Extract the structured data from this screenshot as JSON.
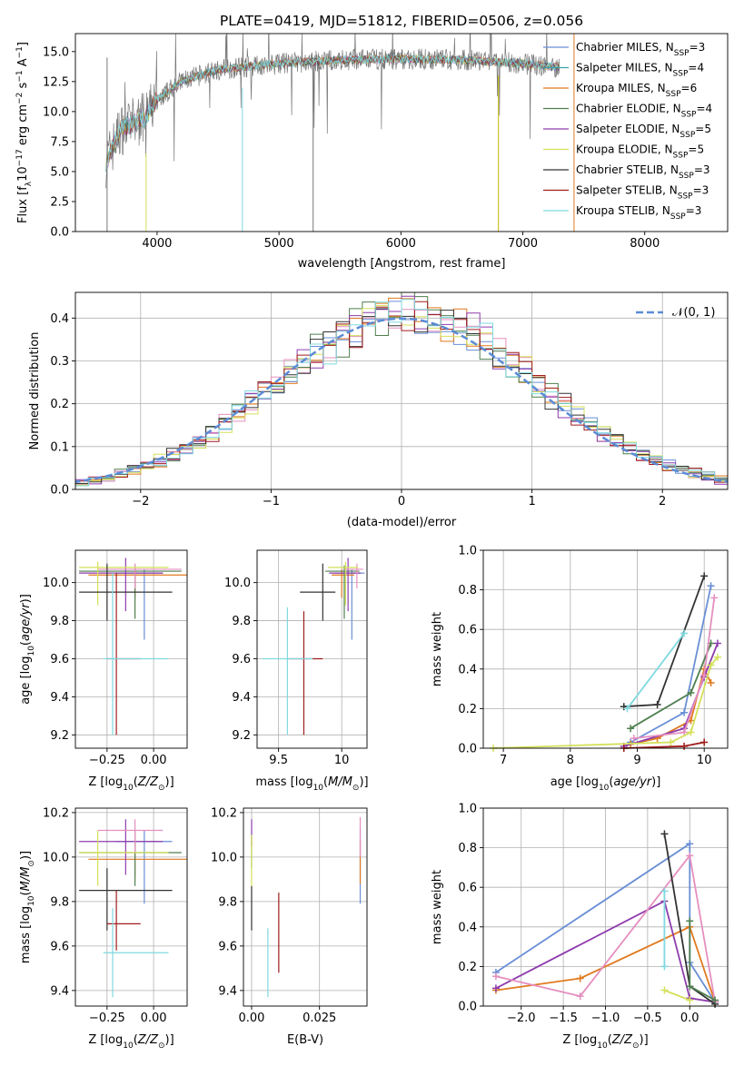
{
  "figure_title": "PLATE=0419, MJD=51812, FIBERID=0506, z=0.056",
  "chart_data": [
    {
      "id": "spectrum",
      "type": "line",
      "title": "PLATE=0419, MJD=51812, FIBERID=0506, z=0.056",
      "xlabel": "wavelength [Angstrom, rest frame]",
      "ylabel": "Flux [f_λ 10^-17 erg cm^-2 s^-1 A^-1]",
      "xlim": [
        3330,
        8680
      ],
      "ylim": [
        0,
        16.5
      ],
      "xticks": [
        4000,
        5000,
        6000,
        7000,
        8000
      ],
      "yticks": [
        0.0,
        2.5,
        5.0,
        7.5,
        10.0,
        12.5,
        15.0
      ],
      "grid": false,
      "legend_position": "upper-right",
      "continuum": [
        [
          3580,
          5.8
        ],
        [
          3700,
          8.5
        ],
        [
          3900,
          9.5
        ],
        [
          4000,
          11.0
        ],
        [
          4200,
          12.5
        ],
        [
          4500,
          13.5
        ],
        [
          5000,
          14.0
        ],
        [
          5500,
          14.3
        ],
        [
          6000,
          14.4
        ],
        [
          6500,
          14.3
        ],
        [
          7000,
          14.0
        ],
        [
          7300,
          13.7
        ]
      ],
      "series": [
        {
          "name": "Chabrier MILES, N_SSP=3",
          "color": "#6a8fd6"
        },
        {
          "name": "Salpeter MILES, N_SSP=4",
          "color": "#3aa0a8"
        },
        {
          "name": "Kroupa MILES, N_SSP=6",
          "color": "#e07a1f"
        },
        {
          "name": "Chabrier ELODIE, N_SSP=4",
          "color": "#4f7f4f"
        },
        {
          "name": "Salpeter ELODIE, N_SSP=5",
          "color": "#8e3cad"
        },
        {
          "name": "Kroupa ELODIE, N_SSP=5",
          "color": "#d4e05a"
        },
        {
          "name": "Chabrier STELIB, N_SSP=3",
          "color": "#333333"
        },
        {
          "name": "Salpeter STELIB, N_SSP=3",
          "color": "#a01c1c"
        },
        {
          "name": "Kroupa STELIB, N_SSP=3",
          "color": "#7fd9e0"
        }
      ]
    },
    {
      "id": "residuals",
      "type": "histogram",
      "xlabel": "(data-model)/error",
      "ylabel": "Normed distribution",
      "xlim": [
        -2.5,
        2.5
      ],
      "ylim": [
        0,
        0.46
      ],
      "xticks": [
        -2,
        -1,
        0,
        1,
        2
      ],
      "yticks": [
        0.0,
        0.1,
        0.2,
        0.3,
        0.4
      ],
      "grid": true,
      "legend": "𝒩(0, 1)",
      "legend_position": "upper-right",
      "gaussian": {
        "mean": 0,
        "sigma": 1,
        "color": "#5b8bd6"
      },
      "bin_width": 0.1,
      "colors": [
        "#6a8fd6",
        "#e07a1f",
        "#4f7f4f",
        "#8e3cad",
        "#e58fc0",
        "#d4e05a",
        "#333333",
        "#a01c1c",
        "#7fd9e0"
      ]
    },
    {
      "id": "age_vs_Z",
      "type": "errorbar",
      "xlabel": "Z [log10(Z/Z⊙)]",
      "ylabel": "age [log10(age/yr)]",
      "xlim": [
        -0.42,
        0.18
      ],
      "ylim": [
        9.13,
        10.17
      ],
      "xticks": [
        -0.25,
        0.0
      ],
      "xticklabels": [
        "−0.25",
        "0.00"
      ],
      "yticks": [
        9.2,
        9.4,
        9.6,
        9.8,
        10.0
      ],
      "grid": true,
      "points": [
        {
          "x": -0.05,
          "xerr": [
            0.15,
            0.1
          ],
          "y": 10.05,
          "yerr": [
            0.35,
            0.02
          ],
          "color": "#6a8fd6"
        },
        {
          "x": -0.1,
          "xerr": [
            0.25,
            0.28
          ],
          "y": 10.04,
          "yerr": [
            0.12,
            0.03
          ],
          "color": "#e07a1f"
        },
        {
          "x": -0.1,
          "xerr": [
            0.3,
            0.25
          ],
          "y": 10.06,
          "yerr": [
            0.25,
            0.03
          ],
          "color": "#4f7f4f"
        },
        {
          "x": -0.15,
          "xerr": [
            0.25,
            0.2
          ],
          "y": 10.05,
          "yerr": [
            0.2,
            0.08
          ],
          "color": "#8e3cad"
        },
        {
          "x": -0.1,
          "xerr": [
            0.2,
            0.25
          ],
          "y": 10.07,
          "yerr": [
            0.1,
            0.03
          ],
          "color": "#e58fc0"
        },
        {
          "x": -0.3,
          "xerr": [
            0.1,
            0.38
          ],
          "y": 10.08,
          "yerr": [
            0.2,
            0.03
          ],
          "color": "#d4e05a"
        },
        {
          "x": -0.25,
          "xerr": [
            0.15,
            0.35
          ],
          "y": 9.95,
          "yerr": [
            0.15,
            0.15
          ],
          "color": "#333333"
        },
        {
          "x": -0.2,
          "xerr": [
            0.05,
            0.13
          ],
          "y": 9.6,
          "yerr": [
            0.4,
            0.45
          ],
          "color": "#a01c1c"
        },
        {
          "x": -0.22,
          "xerr": [
            0.05,
            0.3
          ],
          "y": 9.6,
          "yerr": [
            0.4,
            0.45
          ],
          "color": "#7fd9e0"
        }
      ]
    },
    {
      "id": "age_vs_mass",
      "type": "errorbar",
      "xlabel": "mass [log10(M/M⊙)]",
      "ylabel": "",
      "xlim": [
        9.33,
        10.2
      ],
      "ylim": [
        9.13,
        10.17
      ],
      "xticks": [
        9.5,
        10.0
      ],
      "yticks": [
        9.2,
        9.4,
        9.6,
        9.8,
        10.0
      ],
      "grid": true,
      "points": [
        {
          "x": 10.08,
          "xerr": [
            0.14,
            0.1
          ],
          "y": 10.05,
          "yerr": [
            0.35,
            0.02
          ],
          "color": "#6a8fd6"
        },
        {
          "x": 10.0,
          "xerr": [
            0.08,
            0.1
          ],
          "y": 10.04,
          "yerr": [
            0.12,
            0.03
          ],
          "color": "#e07a1f"
        },
        {
          "x": 10.02,
          "xerr": [
            0.15,
            0.12
          ],
          "y": 10.06,
          "yerr": [
            0.25,
            0.03
          ],
          "color": "#4f7f4f"
        },
        {
          "x": 10.05,
          "xerr": [
            0.15,
            0.1
          ],
          "y": 10.05,
          "yerr": [
            0.2,
            0.08
          ],
          "color": "#8e3cad"
        },
        {
          "x": 10.12,
          "xerr": [
            0.1,
            0.05
          ],
          "y": 10.07,
          "yerr": [
            0.1,
            0.03
          ],
          "color": "#e58fc0"
        },
        {
          "x": 10.03,
          "xerr": [
            0.14,
            0.1
          ],
          "y": 10.08,
          "yerr": [
            0.2,
            0.03
          ],
          "color": "#d4e05a"
        },
        {
          "x": 9.85,
          "xerr": [
            0.18,
            0.1
          ],
          "y": 9.95,
          "yerr": [
            0.15,
            0.15
          ],
          "color": "#333333"
        },
        {
          "x": 9.7,
          "xerr": [
            0.12,
            0.15
          ],
          "y": 9.6,
          "yerr": [
            0.4,
            0.25
          ],
          "color": "#a01c1c"
        },
        {
          "x": 9.57,
          "xerr": [
            0.2,
            0.2
          ],
          "y": 9.6,
          "yerr": [
            0.4,
            0.27
          ],
          "color": "#7fd9e0"
        }
      ]
    },
    {
      "id": "weight_vs_age",
      "type": "line",
      "xlabel": "age [log10(age/yr)]",
      "ylabel": "mass weight",
      "xlim": [
        6.7,
        10.35
      ],
      "ylim": [
        0,
        1.0
      ],
      "xticks": [
        7,
        8,
        9,
        10
      ],
      "yticks": [
        0.0,
        0.2,
        0.4,
        0.6,
        0.8,
        1.0
      ],
      "grid": true,
      "series": [
        {
          "color": "#6a8fd6",
          "points": [
            [
              8.9,
              0.03
            ],
            [
              9.7,
              0.18
            ],
            [
              10.1,
              0.82
            ]
          ]
        },
        {
          "color": "#e07a1f",
          "points": [
            [
              8.9,
              0.02
            ],
            [
              9.3,
              0.05
            ],
            [
              9.8,
              0.14
            ],
            [
              10.0,
              0.4
            ],
            [
              10.1,
              0.33
            ]
          ]
        },
        {
          "color": "#4f7f4f",
          "points": [
            [
              8.9,
              0.1
            ],
            [
              9.8,
              0.28
            ],
            [
              10.1,
              0.53
            ]
          ]
        },
        {
          "color": "#8e3cad",
          "points": [
            [
              8.8,
              0.01
            ],
            [
              9.7,
              0.1
            ],
            [
              10.0,
              0.36
            ],
            [
              10.2,
              0.53
            ]
          ]
        },
        {
          "color": "#e58fc0",
          "points": [
            [
              8.95,
              0.05
            ],
            [
              9.7,
              0.08
            ],
            [
              10.0,
              0.37
            ],
            [
              10.15,
              0.76
            ]
          ]
        },
        {
          "color": "#d4e05a",
          "points": [
            [
              6.85,
              0.0
            ],
            [
              9.5,
              0.03
            ],
            [
              9.8,
              0.08
            ],
            [
              10.1,
              0.42
            ],
            [
              10.2,
              0.46
            ]
          ]
        },
        {
          "color": "#333333",
          "points": [
            [
              8.8,
              0.21
            ],
            [
              9.3,
              0.22
            ],
            [
              10.0,
              0.87
            ]
          ]
        },
        {
          "color": "#a01c1c",
          "points": [
            [
              8.8,
              0.0
            ],
            [
              9.7,
              0.01
            ],
            [
              10.0,
              0.03
            ]
          ]
        },
        {
          "color": "#7fd9e0",
          "points": [
            [
              8.85,
              0.2
            ],
            [
              9.7,
              0.58
            ]
          ]
        }
      ]
    },
    {
      "id": "mass_vs_Z",
      "type": "errorbar",
      "xlabel": "Z [log10(Z/Z⊙)]",
      "ylabel": "mass [log10(M/M⊙)]",
      "xlim": [
        -0.42,
        0.18
      ],
      "ylim": [
        9.33,
        10.22
      ],
      "xticks": [
        -0.25,
        0.0
      ],
      "xticklabels": [
        "−0.25",
        "0.00"
      ],
      "yticks": [
        9.4,
        9.6,
        9.8,
        10.0,
        10.2
      ],
      "grid": true,
      "points": [
        {
          "x": -0.05,
          "xerr": [
            0.15,
            0.15
          ],
          "y": 10.07,
          "yerr": [
            0.28,
            0.05
          ],
          "color": "#6a8fd6"
        },
        {
          "x": -0.1,
          "xerr": [
            0.25,
            0.28
          ],
          "y": 9.99,
          "yerr": [
            0.08,
            0.08
          ],
          "color": "#e07a1f"
        },
        {
          "x": -0.1,
          "xerr": [
            0.3,
            0.25
          ],
          "y": 10.02,
          "yerr": [
            0.15,
            0.1
          ],
          "color": "#4f7f4f"
        },
        {
          "x": -0.15,
          "xerr": [
            0.25,
            0.2
          ],
          "y": 10.07,
          "yerr": [
            0.15,
            0.1
          ],
          "color": "#8e3cad"
        },
        {
          "x": -0.1,
          "xerr": [
            0.2,
            0.15
          ],
          "y": 10.12,
          "yerr": [
            0.1,
            0.05
          ],
          "color": "#e58fc0"
        },
        {
          "x": -0.3,
          "xerr": [
            0.1,
            0.38
          ],
          "y": 10.02,
          "yerr": [
            0.15,
            0.1
          ],
          "color": "#d4e05a"
        },
        {
          "x": -0.25,
          "xerr": [
            0.15,
            0.35
          ],
          "y": 9.85,
          "yerr": [
            0.18,
            0.1
          ],
          "color": "#333333"
        },
        {
          "x": -0.2,
          "xerr": [
            0.05,
            0.13
          ],
          "y": 9.7,
          "yerr": [
            0.12,
            0.15
          ],
          "color": "#a01c1c"
        },
        {
          "x": -0.22,
          "xerr": [
            0.05,
            0.3
          ],
          "y": 9.57,
          "yerr": [
            0.2,
            0.2
          ],
          "color": "#7fd9e0"
        }
      ]
    },
    {
      "id": "mass_vs_EBV",
      "type": "errorbar",
      "xlabel": "E(B-V)",
      "ylabel": "",
      "xlim": [
        -0.003,
        0.0425
      ],
      "ylim": [
        9.33,
        10.22
      ],
      "xticks": [
        0.0,
        0.025
      ],
      "xticklabels": [
        "0.00",
        "0.025"
      ],
      "yticks": [
        9.4,
        9.6,
        9.8,
        10.0,
        10.2
      ],
      "grid": true,
      "points": [
        {
          "x": 0.04,
          "y": 9.98,
          "yerr": [
            0.19,
            0.15
          ],
          "color": "#6a8fd6"
        },
        {
          "x": 0.04,
          "y": 10.0,
          "yerr": [
            0.12,
            0.08
          ],
          "color": "#e07a1f"
        },
        {
          "x": 0.0,
          "y": 10.0,
          "yerr": [
            0.05,
            0.1
          ],
          "color": "#4f7f4f"
        },
        {
          "x": 0.0,
          "y": 10.1,
          "yerr": [
            0.05,
            0.07
          ],
          "color": "#8e3cad"
        },
        {
          "x": 0.04,
          "y": 10.08,
          "yerr": [
            0.08,
            0.1
          ],
          "color": "#e58fc0"
        },
        {
          "x": 0.0,
          "y": 10.02,
          "yerr": [
            0.15,
            0.08
          ],
          "color": "#d4e05a"
        },
        {
          "x": 0.0,
          "y": 9.75,
          "yerr": [
            0.08,
            0.12
          ],
          "color": "#333333"
        },
        {
          "x": 0.01,
          "y": 9.6,
          "yerr": [
            0.12,
            0.24
          ],
          "color": "#a01c1c"
        },
        {
          "x": 0.006,
          "y": 9.5,
          "yerr": [
            0.13,
            0.18
          ],
          "color": "#7fd9e0"
        }
      ]
    },
    {
      "id": "weight_vs_Z",
      "type": "line",
      "xlabel": "Z [log10(Z/Z⊙)]",
      "ylabel": "mass weight",
      "xlim": [
        -2.45,
        0.45
      ],
      "ylim": [
        0,
        1.0
      ],
      "xticks": [
        -2.0,
        -1.5,
        -1.0,
        -0.5,
        0.0
      ],
      "xticklabels": [
        "−2.0",
        "−1.5",
        "−1.0",
        "−0.5",
        "0.0"
      ],
      "yticks": [
        0.0,
        0.2,
        0.4,
        0.6,
        0.8,
        1.0
      ],
      "grid": true,
      "series": [
        {
          "color": "#6a8fd6",
          "points": [
            [
              -2.3,
              0.17
            ],
            [
              0.0,
              0.82
            ],
            [
              0.0,
              0.22
            ],
            [
              0.3,
              0.02
            ]
          ]
        },
        {
          "color": "#e07a1f",
          "points": [
            [
              -2.3,
              0.08
            ],
            [
              -1.3,
              0.14
            ],
            [
              0.0,
              0.4
            ],
            [
              0.3,
              0.02
            ]
          ]
        },
        {
          "color": "#8e3cad",
          "points": [
            [
              -2.3,
              0.09
            ],
            [
              -0.3,
              0.53
            ],
            [
              0.0,
              0.04
            ],
            [
              0.3,
              0.02
            ]
          ]
        },
        {
          "color": "#e58fc0",
          "points": [
            [
              -2.3,
              0.15
            ],
            [
              -1.3,
              0.05
            ],
            [
              0.0,
              0.76
            ],
            [
              0.3,
              0.02
            ]
          ]
        },
        {
          "color": "#333333",
          "points": [
            [
              -0.3,
              0.87
            ],
            [
              0.0,
              0.1
            ],
            [
              0.3,
              0.01
            ]
          ]
        },
        {
          "color": "#4f7f4f",
          "points": [
            [
              0.0,
              0.43
            ],
            [
              0.0,
              0.1
            ],
            [
              0.3,
              0.03
            ]
          ]
        },
        {
          "color": "#7fd9e0",
          "points": [
            [
              -0.3,
              0.58
            ],
            [
              -0.3,
              0.2
            ]
          ]
        },
        {
          "color": "#d4e05a",
          "points": [
            [
              -0.3,
              0.08
            ],
            [
              0.0,
              0.03
            ]
          ]
        }
      ]
    }
  ]
}
